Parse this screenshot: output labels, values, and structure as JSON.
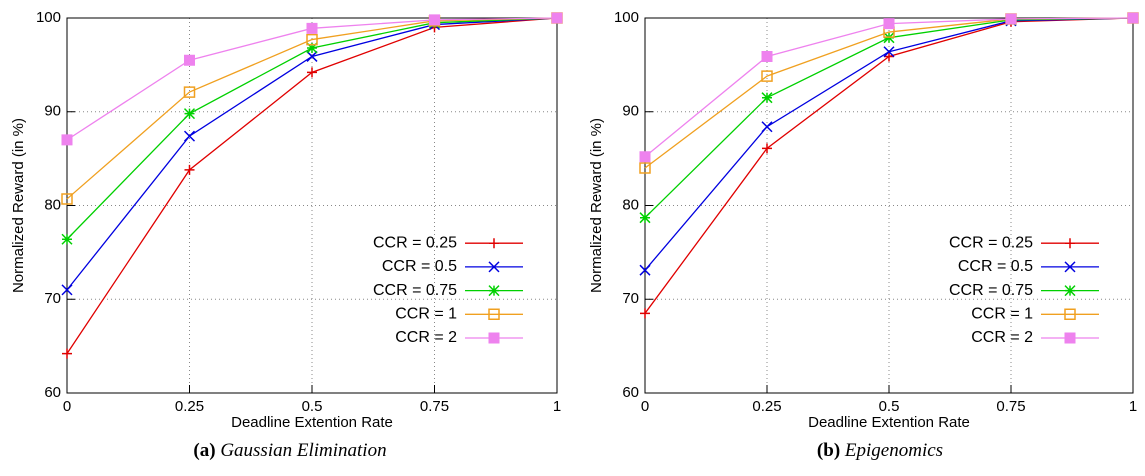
{
  "chart_data": [
    {
      "type": "line",
      "caption_label": "(a)",
      "caption": "Gaussian Elimination",
      "xlabel": "Deadline Extention Rate",
      "ylabel": "Normalized Reward (in %)",
      "x": [
        0,
        0.25,
        0.5,
        0.75,
        1
      ],
      "xlim": [
        0,
        1
      ],
      "xticks": [
        0,
        0.25,
        0.5,
        0.75,
        1
      ],
      "ylim": [
        60,
        100
      ],
      "yticks": [
        60,
        70,
        80,
        90,
        100
      ],
      "grid": true,
      "legend": "lower right",
      "series": [
        {
          "name": "CCR = 0.25",
          "color": "#e00000",
          "marker": "plus",
          "values": [
            64.2,
            83.8,
            94.2,
            99.0,
            100
          ]
        },
        {
          "name": "CCR = 0.5",
          "color": "#0000e0",
          "marker": "cross",
          "values": [
            71.0,
            87.4,
            95.9,
            99.3,
            100
          ]
        },
        {
          "name": "CCR = 0.75",
          "color": "#00d000",
          "marker": "star",
          "values": [
            76.4,
            89.8,
            96.8,
            99.5,
            100
          ]
        },
        {
          "name": "CCR = 1",
          "color": "#f0a020",
          "marker": "square-open",
          "values": [
            80.7,
            92.1,
            97.7,
            99.7,
            100
          ]
        },
        {
          "name": "CCR = 2",
          "color": "#ee82ee",
          "marker": "square-filled",
          "values": [
            87.0,
            95.5,
            98.9,
            99.8,
            100
          ]
        }
      ]
    },
    {
      "type": "line",
      "caption_label": "(b)",
      "caption": "Epigenomics",
      "xlabel": "Deadline Extention Rate",
      "ylabel": "Normalized Reward (in %)",
      "x": [
        0,
        0.25,
        0.5,
        0.75,
        1
      ],
      "xlim": [
        0,
        1
      ],
      "xticks": [
        0,
        0.25,
        0.5,
        0.75,
        1
      ],
      "ylim": [
        60,
        100
      ],
      "yticks": [
        60,
        70,
        80,
        90,
        100
      ],
      "grid": true,
      "legend": "lower right",
      "series": [
        {
          "name": "CCR = 0.25",
          "color": "#e00000",
          "marker": "plus",
          "values": [
            68.5,
            86.1,
            95.9,
            99.6,
            100
          ]
        },
        {
          "name": "CCR = 0.5",
          "color": "#0000e0",
          "marker": "cross",
          "values": [
            73.1,
            88.4,
            96.4,
            99.7,
            100
          ]
        },
        {
          "name": "CCR = 0.75",
          "color": "#00d000",
          "marker": "star",
          "values": [
            78.7,
            91.5,
            97.9,
            99.8,
            100
          ]
        },
        {
          "name": "CCR = 1",
          "color": "#f0a020",
          "marker": "square-open",
          "values": [
            84.0,
            93.8,
            98.5,
            99.9,
            100
          ]
        },
        {
          "name": "CCR = 2",
          "color": "#ee82ee",
          "marker": "square-filled",
          "values": [
            85.2,
            95.9,
            99.4,
            99.9,
            100
          ]
        }
      ]
    }
  ]
}
